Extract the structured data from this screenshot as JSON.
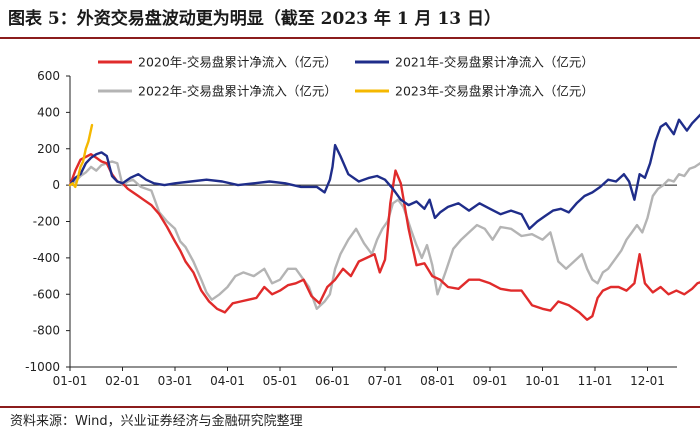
{
  "header": {
    "title": "图表 5：外资交易盘波动更为明显（截至 2023 年 1 月 13 日）"
  },
  "footer": {
    "source": "资料来源：Wind，兴业证券经济与金融研究院整理"
  },
  "colors": {
    "rule": "#8b1c1c",
    "axis": "#222222"
  },
  "chart_data": {
    "type": "line",
    "title": "",
    "xlabel": "",
    "ylabel": "",
    "ylim": [
      -1000,
      600
    ],
    "yticks": [
      -1000,
      -800,
      -600,
      -400,
      -200,
      0,
      200,
      400,
      600
    ],
    "x_unit": "month.day",
    "xlim": [
      1.0,
      13.0
    ],
    "xticks": [
      "01-01",
      "02-01",
      "03-01",
      "04-01",
      "05-01",
      "06-01",
      "07-01",
      "08-01",
      "09-01",
      "10-01",
      "11-01",
      "12-01"
    ],
    "grid": false,
    "legend_position": "top",
    "series": [
      {
        "name": "2020年-交易盘累计净流入（亿元）",
        "color": "#e02b2b",
        "points": [
          [
            1.0,
            0
          ],
          [
            1.1,
            80
          ],
          [
            1.2,
            140
          ],
          [
            1.3,
            155
          ],
          [
            1.4,
            170
          ],
          [
            1.5,
            150
          ],
          [
            1.6,
            130
          ],
          [
            1.7,
            120
          ],
          [
            1.8,
            60
          ],
          [
            1.9,
            20
          ],
          [
            2.0,
            10
          ],
          [
            2.1,
            -20
          ],
          [
            2.2,
            -40
          ],
          [
            2.3,
            -60
          ],
          [
            2.4,
            -80
          ],
          [
            2.55,
            -110
          ],
          [
            2.7,
            -160
          ],
          [
            2.85,
            -230
          ],
          [
            3.0,
            -310
          ],
          [
            3.1,
            -360
          ],
          [
            3.2,
            -420
          ],
          [
            3.35,
            -480
          ],
          [
            3.5,
            -580
          ],
          [
            3.65,
            -640
          ],
          [
            3.8,
            -680
          ],
          [
            3.95,
            -700
          ],
          [
            4.1,
            -650
          ],
          [
            4.25,
            -640
          ],
          [
            4.4,
            -630
          ],
          [
            4.55,
            -620
          ],
          [
            4.7,
            -560
          ],
          [
            4.85,
            -600
          ],
          [
            5.0,
            -580
          ],
          [
            5.15,
            -550
          ],
          [
            5.3,
            -540
          ],
          [
            5.45,
            -520
          ],
          [
            5.6,
            -610
          ],
          [
            5.75,
            -650
          ],
          [
            5.9,
            -560
          ],
          [
            6.05,
            -520
          ],
          [
            6.2,
            -460
          ],
          [
            6.35,
            -500
          ],
          [
            6.5,
            -420
          ],
          [
            6.65,
            -400
          ],
          [
            6.8,
            -380
          ],
          [
            6.9,
            -480
          ],
          [
            7.0,
            -410
          ],
          [
            7.1,
            -100
          ],
          [
            7.2,
            80
          ],
          [
            7.3,
            10
          ],
          [
            7.45,
            -240
          ],
          [
            7.6,
            -440
          ],
          [
            7.75,
            -430
          ],
          [
            7.9,
            -500
          ],
          [
            8.05,
            -520
          ],
          [
            8.2,
            -560
          ],
          [
            8.4,
            -570
          ],
          [
            8.6,
            -520
          ],
          [
            8.8,
            -520
          ],
          [
            9.0,
            -540
          ],
          [
            9.2,
            -570
          ],
          [
            9.4,
            -580
          ],
          [
            9.6,
            -580
          ],
          [
            9.8,
            -660
          ],
          [
            10.0,
            -680
          ],
          [
            10.15,
            -690
          ],
          [
            10.3,
            -640
          ],
          [
            10.5,
            -660
          ],
          [
            10.7,
            -700
          ],
          [
            10.85,
            -740
          ],
          [
            10.95,
            -720
          ],
          [
            11.05,
            -620
          ],
          [
            11.15,
            -580
          ],
          [
            11.3,
            -560
          ],
          [
            11.45,
            -560
          ],
          [
            11.6,
            -580
          ],
          [
            11.75,
            -540
          ],
          [
            11.85,
            -380
          ],
          [
            11.95,
            -540
          ],
          [
            12.1,
            -590
          ],
          [
            12.25,
            -560
          ],
          [
            12.4,
            -600
          ],
          [
            12.55,
            -580
          ],
          [
            12.7,
            -600
          ],
          [
            12.85,
            -570
          ],
          [
            12.95,
            -540
          ],
          [
            13.05,
            -530
          ]
        ]
      },
      {
        "name": "2021年-交易盘累计净流入（亿元）",
        "color": "#1f2d8a",
        "points": [
          [
            1.0,
            0
          ],
          [
            1.1,
            40
          ],
          [
            1.2,
            60
          ],
          [
            1.3,
            120
          ],
          [
            1.4,
            150
          ],
          [
            1.5,
            170
          ],
          [
            1.6,
            180
          ],
          [
            1.7,
            160
          ],
          [
            1.8,
            50
          ],
          [
            1.9,
            20
          ],
          [
            2.0,
            10
          ],
          [
            2.15,
            40
          ],
          [
            2.3,
            60
          ],
          [
            2.45,
            30
          ],
          [
            2.6,
            10
          ],
          [
            2.8,
            0
          ],
          [
            3.0,
            10
          ],
          [
            3.3,
            20
          ],
          [
            3.6,
            30
          ],
          [
            3.9,
            20
          ],
          [
            4.2,
            0
          ],
          [
            4.5,
            10
          ],
          [
            4.8,
            20
          ],
          [
            5.1,
            10
          ],
          [
            5.4,
            -10
          ],
          [
            5.7,
            -10
          ],
          [
            5.85,
            -40
          ],
          [
            5.95,
            30
          ],
          [
            6.0,
            100
          ],
          [
            6.05,
            220
          ],
          [
            6.15,
            160
          ],
          [
            6.3,
            60
          ],
          [
            6.5,
            20
          ],
          [
            6.7,
            40
          ],
          [
            6.85,
            50
          ],
          [
            7.0,
            30
          ],
          [
            7.15,
            -20
          ],
          [
            7.3,
            -80
          ],
          [
            7.45,
            -110
          ],
          [
            7.6,
            -90
          ],
          [
            7.75,
            -130
          ],
          [
            7.85,
            -80
          ],
          [
            7.95,
            -180
          ],
          [
            8.05,
            -150
          ],
          [
            8.2,
            -120
          ],
          [
            8.4,
            -100
          ],
          [
            8.6,
            -140
          ],
          [
            8.8,
            -100
          ],
          [
            9.0,
            -130
          ],
          [
            9.2,
            -160
          ],
          [
            9.4,
            -140
          ],
          [
            9.6,
            -160
          ],
          [
            9.75,
            -240
          ],
          [
            9.9,
            -200
          ],
          [
            10.05,
            -170
          ],
          [
            10.2,
            -140
          ],
          [
            10.35,
            -130
          ],
          [
            10.5,
            -150
          ],
          [
            10.65,
            -100
          ],
          [
            10.8,
            -60
          ],
          [
            10.95,
            -40
          ],
          [
            11.1,
            -10
          ],
          [
            11.25,
            30
          ],
          [
            11.4,
            20
          ],
          [
            11.55,
            60
          ],
          [
            11.65,
            20
          ],
          [
            11.75,
            -80
          ],
          [
            11.85,
            60
          ],
          [
            11.95,
            40
          ],
          [
            12.05,
            120
          ],
          [
            12.15,
            240
          ],
          [
            12.25,
            320
          ],
          [
            12.35,
            340
          ],
          [
            12.5,
            280
          ],
          [
            12.6,
            360
          ],
          [
            12.75,
            300
          ],
          [
            12.85,
            340
          ],
          [
            12.95,
            370
          ],
          [
            13.05,
            400
          ]
        ]
      },
      {
        "name": "2022年-交易盘累计净流入（亿元）",
        "color": "#b4b4b4",
        "points": [
          [
            1.0,
            0
          ],
          [
            1.1,
            20
          ],
          [
            1.2,
            50
          ],
          [
            1.3,
            70
          ],
          [
            1.4,
            100
          ],
          [
            1.5,
            80
          ],
          [
            1.6,
            110
          ],
          [
            1.7,
            120
          ],
          [
            1.8,
            130
          ],
          [
            1.9,
            120
          ],
          [
            2.0,
            0
          ],
          [
            2.1,
            20
          ],
          [
            2.2,
            30
          ],
          [
            2.35,
            -10
          ],
          [
            2.45,
            -20
          ],
          [
            2.55,
            -30
          ],
          [
            2.7,
            -150
          ],
          [
            2.85,
            -200
          ],
          [
            3.0,
            -240
          ],
          [
            3.1,
            -310
          ],
          [
            3.2,
            -340
          ],
          [
            3.35,
            -420
          ],
          [
            3.5,
            -520
          ],
          [
            3.6,
            -590
          ],
          [
            3.7,
            -630
          ],
          [
            3.85,
            -600
          ],
          [
            4.0,
            -560
          ],
          [
            4.15,
            -500
          ],
          [
            4.3,
            -480
          ],
          [
            4.5,
            -500
          ],
          [
            4.7,
            -460
          ],
          [
            4.85,
            -540
          ],
          [
            5.0,
            -520
          ],
          [
            5.15,
            -460
          ],
          [
            5.3,
            -460
          ],
          [
            5.45,
            -520
          ],
          [
            5.55,
            -560
          ],
          [
            5.7,
            -680
          ],
          [
            5.85,
            -640
          ],
          [
            5.95,
            -600
          ],
          [
            6.05,
            -460
          ],
          [
            6.15,
            -380
          ],
          [
            6.3,
            -300
          ],
          [
            6.45,
            -240
          ],
          [
            6.6,
            -320
          ],
          [
            6.75,
            -380
          ],
          [
            6.85,
            -300
          ],
          [
            6.95,
            -240
          ],
          [
            7.05,
            -200
          ],
          [
            7.15,
            -100
          ],
          [
            7.25,
            -80
          ],
          [
            7.35,
            -120
          ],
          [
            7.5,
            -250
          ],
          [
            7.6,
            -330
          ],
          [
            7.7,
            -400
          ],
          [
            7.8,
            -330
          ],
          [
            7.9,
            -440
          ],
          [
            8.0,
            -600
          ],
          [
            8.15,
            -480
          ],
          [
            8.3,
            -350
          ],
          [
            8.45,
            -300
          ],
          [
            8.6,
            -260
          ],
          [
            8.75,
            -220
          ],
          [
            8.9,
            -240
          ],
          [
            9.05,
            -300
          ],
          [
            9.2,
            -230
          ],
          [
            9.4,
            -240
          ],
          [
            9.6,
            -280
          ],
          [
            9.8,
            -270
          ],
          [
            10.0,
            -300
          ],
          [
            10.15,
            -260
          ],
          [
            10.3,
            -420
          ],
          [
            10.45,
            -460
          ],
          [
            10.6,
            -420
          ],
          [
            10.75,
            -380
          ],
          [
            10.85,
            -460
          ],
          [
            10.95,
            -520
          ],
          [
            11.05,
            -540
          ],
          [
            11.15,
            -480
          ],
          [
            11.25,
            -460
          ],
          [
            11.4,
            -400
          ],
          [
            11.5,
            -360
          ],
          [
            11.6,
            -300
          ],
          [
            11.7,
            -260
          ],
          [
            11.8,
            -220
          ],
          [
            11.9,
            -260
          ],
          [
            12.0,
            -180
          ],
          [
            12.1,
            -60
          ],
          [
            12.2,
            -20
          ],
          [
            12.3,
            0
          ],
          [
            12.4,
            30
          ],
          [
            12.5,
            20
          ],
          [
            12.6,
            60
          ],
          [
            12.7,
            50
          ],
          [
            12.8,
            90
          ],
          [
            12.9,
            100
          ],
          [
            13.0,
            120
          ],
          [
            13.05,
            100
          ]
        ]
      },
      {
        "name": "2023年-交易盘累计净流入（亿元）",
        "color": "#f5b800",
        "points": [
          [
            1.0,
            0
          ],
          [
            1.05,
            10
          ],
          [
            1.1,
            -10
          ],
          [
            1.15,
            40
          ],
          [
            1.2,
            100
          ],
          [
            1.25,
            130
          ],
          [
            1.3,
            200
          ],
          [
            1.35,
            240
          ],
          [
            1.42,
            330
          ]
        ]
      }
    ]
  }
}
